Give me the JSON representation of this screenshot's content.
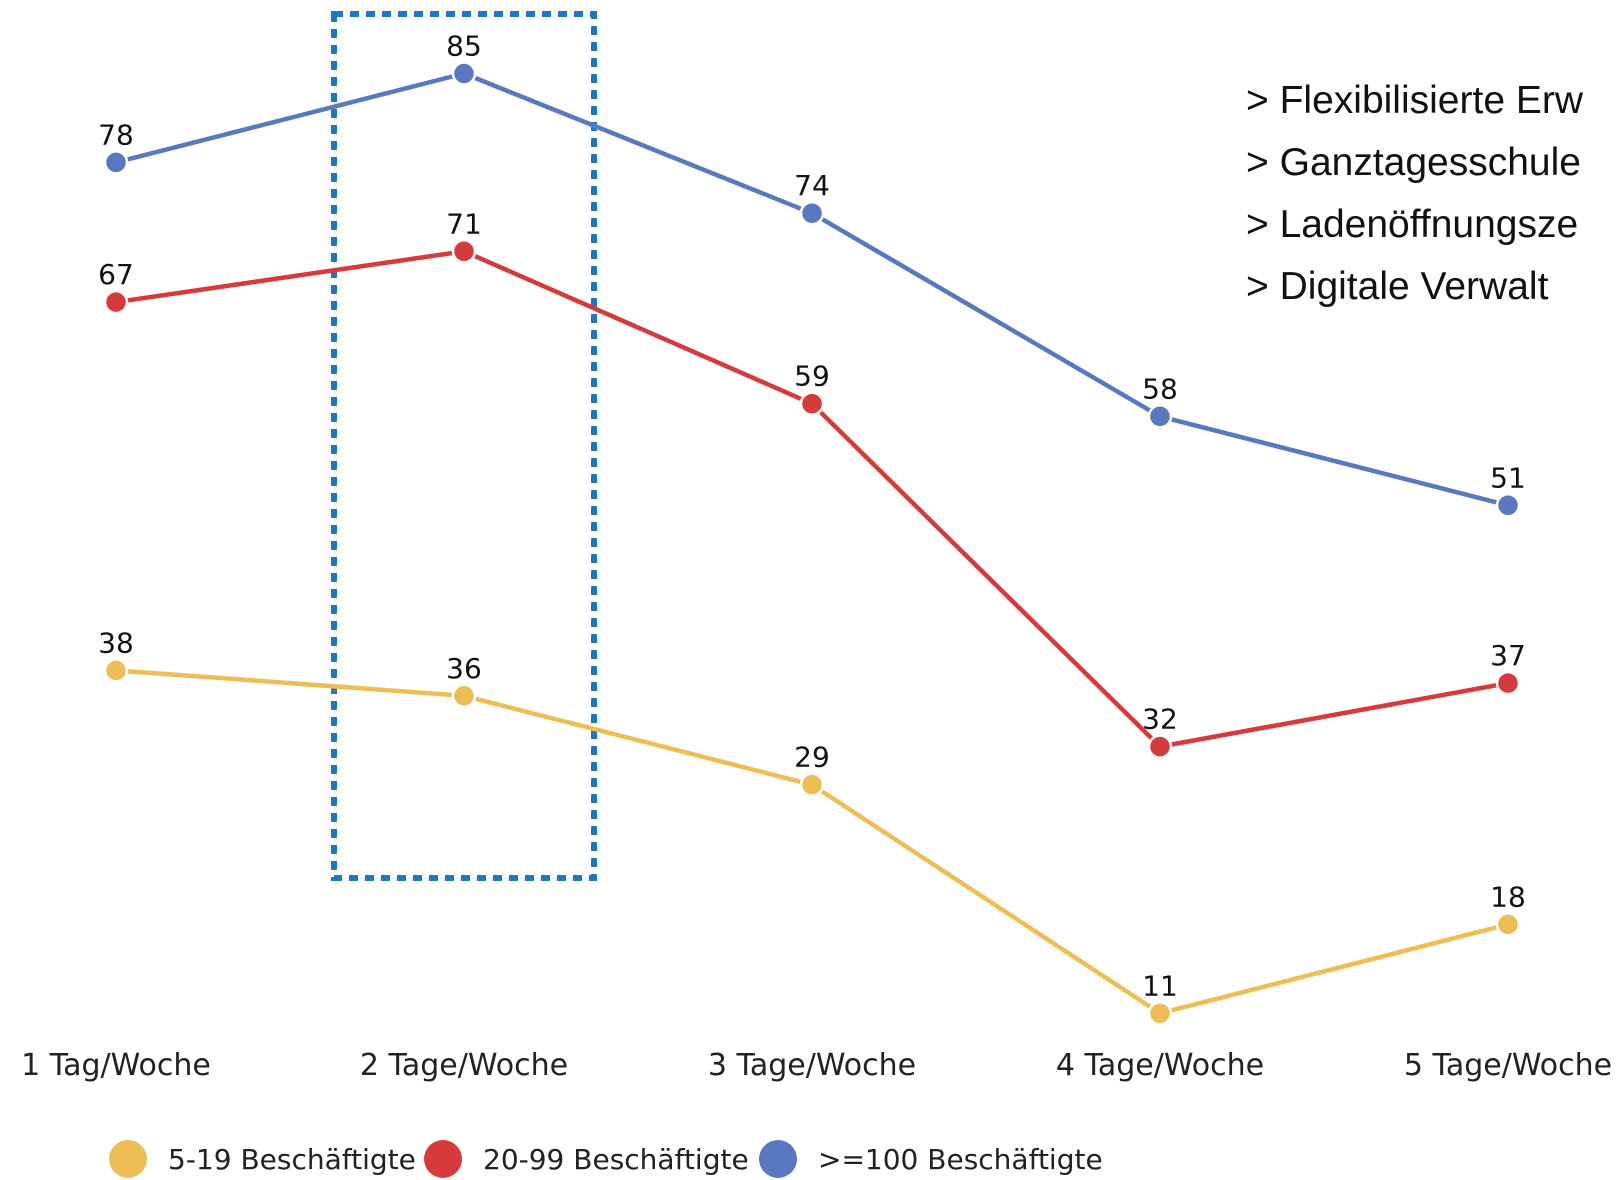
{
  "chart_data": {
    "type": "line",
    "categories": [
      "1 Tag/Woche",
      "2 Tage/Woche",
      "3 Tage/Woche",
      "4 Tage/Woche",
      "5 Tage/Woche"
    ],
    "series": [
      {
        "name": "5-19 Beschäftigte",
        "color": "#EDBE53",
        "values": [
          38,
          36,
          29,
          11,
          18
        ],
        "labels": [
          "38",
          "36",
          "29",
          "11",
          "18"
        ]
      },
      {
        "name": "20-99 Beschäftigte",
        "color": "#D63A3A",
        "values": [
          67,
          71,
          59,
          32,
          37
        ],
        "labels": [
          "67",
          "71",
          "59",
          "32",
          "37"
        ]
      },
      {
        "name": ">=100 Beschäftigte",
        "color": "#5878C0",
        "values": [
          78,
          85,
          74,
          58,
          51
        ],
        "labels": [
          "78",
          "85",
          "74",
          "58",
          "51"
        ]
      }
    ],
    "title": "",
    "xlabel": "",
    "ylabel": "",
    "ylim": [
      0,
      90
    ],
    "grid": false,
    "legend_position": "bottom",
    "highlight": {
      "category": "2 Tage/Woche",
      "style": "dotted",
      "color": "#1F77C8"
    }
  },
  "annotations": {
    "bullets": [
      "> Flexibilisierte Erw",
      "> Ganztagesschule",
      "> Ladenöffnungsze",
      "> Digitale Verwalt"
    ]
  }
}
